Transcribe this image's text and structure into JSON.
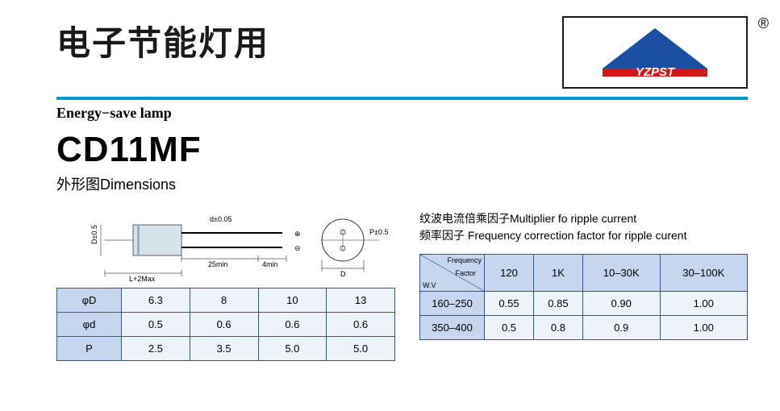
{
  "header": {
    "title_cn": "电子节能灯用",
    "subtitle_en": "Energy−save lamp",
    "product_code": "CD11MF",
    "dimensions_label": "外形图Dimensions",
    "registered": "®"
  },
  "colors": {
    "divider": "#0099cc",
    "table_border": "#2a5a9c",
    "table_header_bg": "#c5d6ee",
    "table_cell_bg": "#eef3fb",
    "logo_triangle": "#1a4fa3",
    "logo_band": "#d01818"
  },
  "diagram_labels": {
    "d_tol": "d±0.05",
    "p_tol": "P±0.5",
    "len25": "25min",
    "len4": "4min",
    "L": "L+2Max",
    "D_side": "D±0.5",
    "D_front": "D",
    "plus": "⊕",
    "minus": "⊖"
  },
  "dim_table": {
    "rows": [
      {
        "label": "φD",
        "cells": [
          "6.3",
          "8",
          "10",
          "13"
        ]
      },
      {
        "label": "φd",
        "cells": [
          "0.5",
          "0.6",
          "0.6",
          "0.6"
        ]
      },
      {
        "label": "P",
        "cells": [
          "2.5",
          "3.5",
          "5.0",
          "5.0"
        ]
      }
    ]
  },
  "ripple_text": {
    "line1": "纹波电流倍乘因子Multiplier fo ripple current",
    "line2": "频率因子 Frequency correction factor for ripple curent"
  },
  "freq_table": {
    "corner_top": "Frequency",
    "corner_side": "Factor",
    "corner_bottom": "W.V",
    "headers": [
      "120",
      "1K",
      "10–30K",
      "30–100K"
    ],
    "rows": [
      {
        "label": "160–250",
        "cells": [
          "0.55",
          "0.85",
          "0.90",
          "1.00"
        ]
      },
      {
        "label": "350–400",
        "cells": [
          "0.5",
          "0.8",
          "0.9",
          "1.00"
        ]
      }
    ]
  }
}
